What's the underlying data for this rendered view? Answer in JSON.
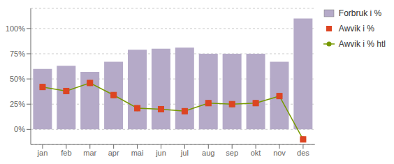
{
  "chart_data": {
    "type": "bar",
    "categories": [
      "jan",
      "feb",
      "mar",
      "apr",
      "mai",
      "jun",
      "jul",
      "aug",
      "sep",
      "okt",
      "nov",
      "des"
    ],
    "series": [
      {
        "name": "Forbruk i %",
        "type": "bar",
        "color": "#b5aac8",
        "values": [
          60,
          63,
          57,
          67,
          79,
          80,
          81,
          75,
          75,
          75,
          67,
          110
        ]
      },
      {
        "name": "Awvik i %",
        "type": "scatter",
        "color": "#dd4422",
        "marker": "square",
        "line_style": "none",
        "values": [
          42,
          38,
          46,
          34,
          21,
          20,
          18,
          26,
          25,
          26,
          33,
          -10
        ]
      },
      {
        "name": "Awvik i % htl",
        "type": "line",
        "color": "#779900",
        "marker": "circle",
        "line_style": "solid",
        "values": [
          42,
          38,
          46,
          34,
          21,
          20,
          18,
          26,
          25,
          26,
          33,
          -10
        ]
      }
    ],
    "ylim": [
      -15,
      120
    ],
    "yticks": [
      {
        "value": 0,
        "label": "0%"
      },
      {
        "value": 25,
        "label": "25%"
      },
      {
        "value": 50,
        "label": "50%"
      },
      {
        "value": 75,
        "label": "75%"
      },
      {
        "value": 100,
        "label": "100%"
      }
    ],
    "grid": true,
    "legend": "right"
  }
}
